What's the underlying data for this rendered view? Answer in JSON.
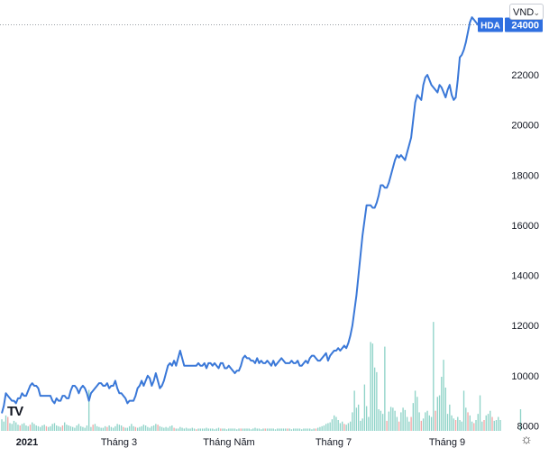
{
  "currency": {
    "selected": "VND",
    "chevron_icon": "chevron-down-icon"
  },
  "logo": {
    "text": "TV",
    "icon": "tradingview-logo-icon"
  },
  "settings": {
    "icon": "gear-icon",
    "glyph": "☼"
  },
  "colors": {
    "line": "#3a78d8",
    "volume_up": "#8fd3c8",
    "volume_down": "#f2a6a6",
    "axis_text": "#131722",
    "label_bg": "#2f6fe0",
    "last_price_line": "#9aa0a6"
  },
  "chart_data": {
    "type": "line",
    "title": "",
    "series": [
      {
        "name": "HDA",
        "last_value": "24000",
        "values": [
          8500,
          8800,
          9300,
          9200,
          9100,
          9000,
          9000,
          8900,
          9100,
          9100,
          9300,
          9200,
          9200,
          9400,
          9600,
          9700,
          9600,
          9600,
          9500,
          9200,
          9200,
          9200,
          9200,
          9200,
          9200,
          9000,
          8900,
          9100,
          9000,
          9000,
          9200,
          9200,
          9100,
          9100,
          9400,
          9600,
          9600,
          9500,
          9300,
          9500,
          9600,
          9500,
          9300,
          9000,
          9300,
          9400,
          9500,
          9600,
          9700,
          9700,
          9600,
          9600,
          9700,
          9500,
          9600,
          9600,
          9800,
          9500,
          9300,
          9300,
          9200,
          9100,
          8900,
          9000,
          9000,
          9000,
          9200,
          9500,
          9600,
          9800,
          9600,
          9800,
          10000,
          9900,
          9600,
          9800,
          10100,
          9800,
          9500,
          9600,
          9800,
          10100,
          10400,
          10500,
          10400,
          10600,
          10400,
          10700,
          11000,
          10700,
          10400,
          10400,
          10400,
          10400,
          10400,
          10400,
          10400,
          10500,
          10400,
          10400,
          10500,
          10300,
          10500,
          10500,
          10400,
          10500,
          10400,
          10300,
          10500,
          10500,
          10300,
          10300,
          10400,
          10300,
          10200,
          10100,
          10200,
          10200,
          10400,
          10700,
          10800,
          10700,
          10700,
          10600,
          10600,
          10500,
          10700,
          10500,
          10600,
          10500,
          10500,
          10600,
          10500,
          10400,
          10600,
          10400,
          10500,
          10600,
          10700,
          10600,
          10500,
          10500,
          10500,
          10600,
          10500,
          10500,
          10600,
          10400,
          10400,
          10500,
          10600,
          10500,
          10700,
          10800,
          10800,
          10700,
          10600,
          10600,
          10700,
          10800,
          10900,
          10600,
          10800,
          10900,
          11000,
          11000,
          11100,
          11000,
          11100,
          11200,
          11100,
          11300,
          11600,
          12000,
          12600,
          13200,
          14000,
          14800,
          15600,
          16200,
          16800,
          16800,
          16800,
          16700,
          16700,
          16900,
          17200,
          17600,
          17600,
          17500,
          17500,
          17700,
          18000,
          18300,
          18600,
          18800,
          18700,
          18800,
          18700,
          18600,
          18900,
          19200,
          19500,
          20200,
          20900,
          21200,
          21100,
          21000,
          21600,
          21900,
          22000,
          21800,
          21600,
          21500,
          21400,
          21300,
          21600,
          21500,
          21300,
          21100,
          21400,
          21600,
          21200,
          21000,
          21100,
          21800,
          22700,
          22800,
          23000,
          23300,
          23700,
          24100,
          24300,
          24200,
          24100,
          24000,
          23900,
          23800,
          23900,
          23900,
          23800,
          23900,
          24100,
          24200,
          24100,
          24100,
          24000
        ]
      }
    ],
    "volume": {
      "values": [
        1500,
        1200,
        2000,
        1800,
        1000,
        900,
        1300,
        1100,
        800,
        700,
        900,
        1000,
        700,
        600,
        800,
        1100,
        900,
        700,
        600,
        500,
        700,
        800,
        600,
        500,
        600,
        900,
        1000,
        700,
        600,
        500,
        700,
        1100,
        800,
        700,
        600,
        500,
        400,
        700,
        900,
        600,
        500,
        400,
        700,
        600,
        500,
        800,
        900,
        600,
        500,
        400,
        400,
        600,
        500,
        700,
        500,
        400,
        600,
        900,
        800,
        700,
        500,
        400,
        400,
        600,
        900,
        600,
        500,
        400,
        500,
        600,
        800,
        700,
        500,
        400,
        600,
        700,
        900,
        800,
        600,
        500,
        400,
        500,
        400,
        600,
        700,
        400,
        300,
        300,
        500,
        400,
        300,
        400,
        300,
        300,
        400,
        300,
        200,
        300,
        300,
        300,
        300,
        400,
        300,
        300,
        300,
        200,
        300,
        400,
        300,
        300,
        300,
        200,
        300,
        300,
        300,
        300,
        200,
        300,
        300,
        300,
        300,
        300,
        300,
        200,
        300,
        400,
        300,
        300,
        200,
        300,
        300,
        300,
        300,
        300,
        300,
        200,
        300,
        300,
        300,
        300,
        300,
        300,
        300,
        200,
        300,
        300,
        300,
        300,
        200,
        300,
        300,
        300,
        300,
        200,
        300,
        300,
        400,
        500,
        600,
        700,
        900,
        1000,
        1100,
        1500,
        2000,
        1800,
        1400,
        1000,
        1200,
        900,
        800,
        1000,
        1200,
        2400,
        5600,
        3000,
        3400,
        1300,
        1600,
        5400,
        3200,
        1800,
        2200,
        1800,
        1500,
        1900,
        2800,
        2600,
        2200,
        1700,
        1300,
        2500,
        3100,
        3000,
        2600,
        1800,
        1200,
        2400,
        3000,
        2700,
        1800,
        1200,
        1800,
        3600,
        5400,
        4400,
        2400,
        1300,
        1600,
        2400,
        2600,
        2000,
        1800,
        1200,
        2600,
        4400,
        4600,
        4000,
        2800,
        1800,
        2200,
        3400,
        2000,
        1600,
        1400,
        1800,
        1400,
        1200,
        2600,
        3000,
        2400,
        2000,
        1200,
        1000,
        1400,
        2200,
        1800,
        1200,
        1400,
        2000,
        2200,
        2600,
        1800,
        1300,
        1400,
        1800,
        1400
      ],
      "ymax": 14000,
      "tall_highlights": [
        {
          "i": 182,
          "v": 11500
        },
        {
          "i": 183,
          "v": 11300
        },
        {
          "i": 184,
          "v": 8200
        },
        {
          "i": 185,
          "v": 7600
        },
        {
          "i": 189,
          "v": 10900
        },
        {
          "i": 174,
          "v": 5200
        },
        {
          "i": 179,
          "v": 6000
        },
        {
          "i": 213,
          "v": 14100
        },
        {
          "i": 204,
          "v": 5200
        },
        {
          "i": 217,
          "v": 7000
        },
        {
          "i": 218,
          "v": 9200
        },
        {
          "i": 219,
          "v": 5600
        },
        {
          "i": 228,
          "v": 5200
        },
        {
          "i": 236,
          "v": 4600
        },
        {
          "i": 256,
          "v": 2800
        },
        {
          "i": 43,
          "v": 5300
        }
      ],
      "down_indices": [
        3,
        9,
        14,
        22,
        30,
        45,
        52,
        60,
        66,
        77,
        85,
        96,
        108,
        118,
        130,
        141,
        155,
        169,
        190,
        196,
        202,
        207,
        214,
        224,
        230,
        233,
        238,
        242,
        249,
        253
      ]
    },
    "xlabels": [
      "2021",
      "Tháng 3",
      "Tháng Năm",
      "Tháng 7",
      "Tháng 9"
    ],
    "xlabel_index": [
      0,
      60,
      120,
      180,
      240
    ],
    "yticks": [
      8000,
      10000,
      12000,
      14000,
      16000,
      18000,
      20000,
      22000
    ],
    "ylim": [
      7800,
      24700
    ],
    "xlabel": "",
    "ylabel": "",
    "grid": false,
    "legend": "right"
  }
}
